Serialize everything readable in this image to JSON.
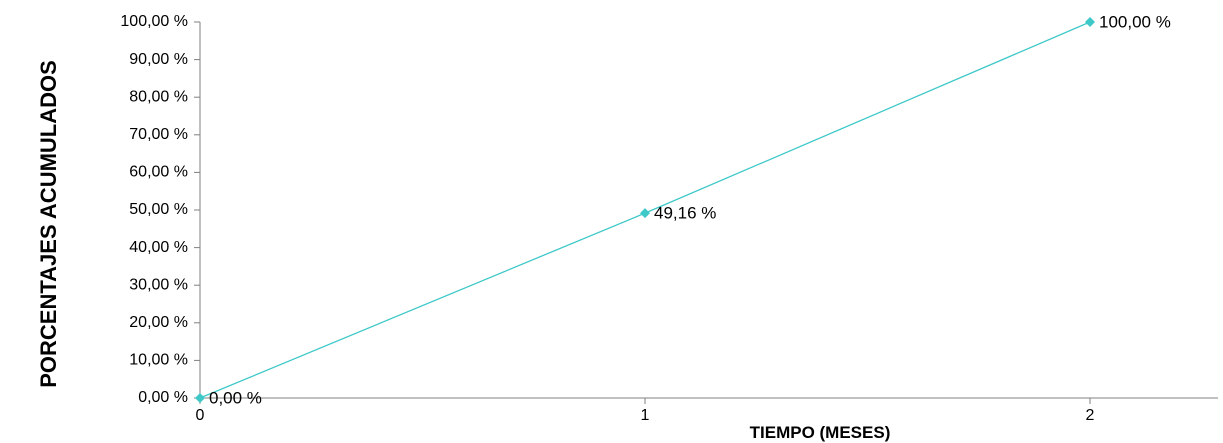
{
  "chart_data": {
    "type": "line",
    "xlabel": "TIEMPO (MESES)",
    "ylabel": "PORCENTAJES ACUMULADOS",
    "x": [
      0,
      1,
      2
    ],
    "xticks": [
      "0",
      "1",
      "2"
    ],
    "xlim": [
      0,
      2.3
    ],
    "ylim": [
      0,
      100
    ],
    "yticks": [
      0,
      10,
      20,
      30,
      40,
      50,
      60,
      70,
      80,
      90,
      100
    ],
    "ytick_labels": [
      "0,00 %",
      "10,00 %",
      "20,00 %",
      "30,00 %",
      "40,00 %",
      "50,00 %",
      "60,00 %",
      "70,00 %",
      "80,00 %",
      "90,00 %",
      "100,00 %"
    ],
    "series": [
      {
        "values": [
          0,
          49.16,
          100
        ],
        "data_labels": [
          "0,00 %",
          "49,16 %",
          "100,00 %"
        ],
        "color": "#3ec8c8"
      }
    ],
    "grid": false,
    "legend": "none"
  }
}
